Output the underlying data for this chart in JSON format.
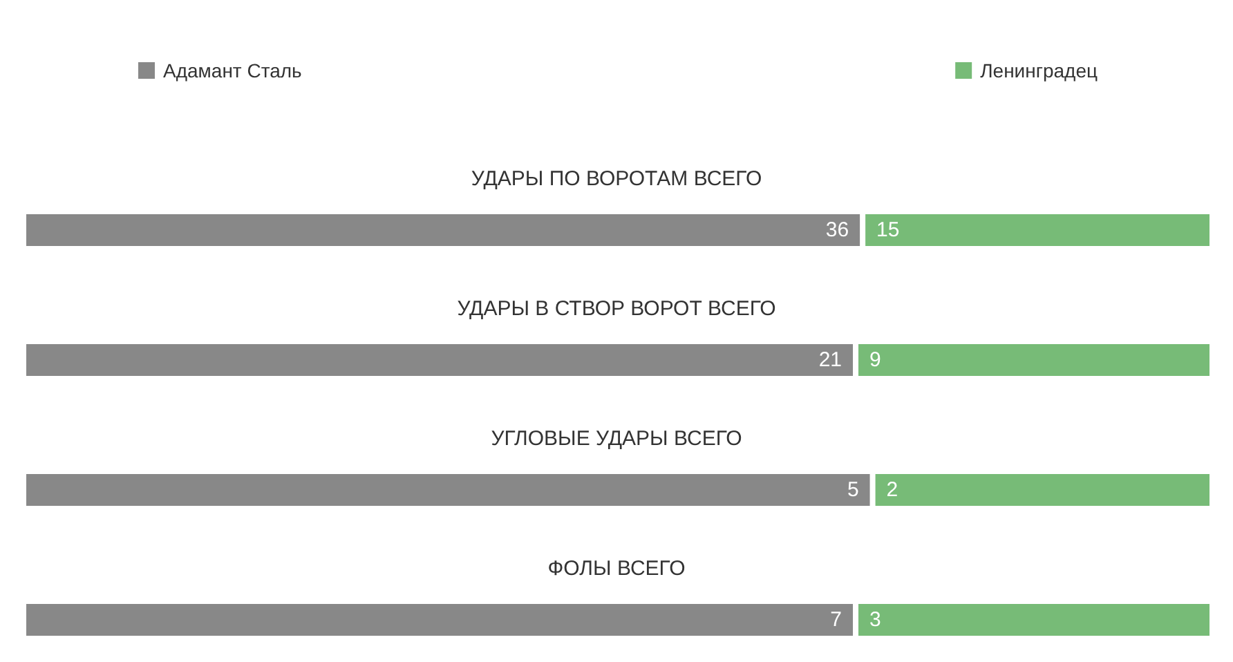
{
  "chart_data": [
    {
      "type": "bar",
      "orientation": "horizontal",
      "stacked": true,
      "data_labels": true,
      "legend": "top",
      "title": "УДАРЫ ПО ВОРОТАМ ВСЕГО",
      "categories": [
        null
      ],
      "series": [
        {
          "name": "Адамант Сталь",
          "color": "#888888",
          "values": [
            36
          ]
        },
        {
          "name": "Ленинградец",
          "color": "#77bb77",
          "values": [
            15
          ]
        }
      ]
    },
    {
      "type": "bar",
      "orientation": "horizontal",
      "stacked": true,
      "data_labels": true,
      "title": "УДАРЫ В СТВОР ВОРОТ ВСЕГО",
      "categories": [
        null
      ],
      "series": [
        {
          "color": "#888888",
          "values": [
            21
          ]
        },
        {
          "color": "#77bb77",
          "values": [
            9
          ]
        }
      ]
    },
    {
      "type": "bar",
      "orientation": "horizontal",
      "stacked": true,
      "data_labels": true,
      "title": "УГЛОВЫЕ УДАРЫ ВСЕГО",
      "categories": [
        null
      ],
      "series": [
        {
          "color": "#888888",
          "values": [
            5
          ]
        },
        {
          "color": "#77bb77",
          "values": [
            2
          ]
        }
      ]
    },
    {
      "type": "bar",
      "orientation": "horizontal",
      "stacked": true,
      "data_labels": true,
      "title": "ФОЛЫ ВСЕГО",
      "categories": [
        null
      ],
      "series": [
        {
          "color": "#888888",
          "values": [
            7
          ]
        },
        {
          "color": "#77bb77",
          "values": [
            3
          ]
        }
      ]
    }
  ]
}
